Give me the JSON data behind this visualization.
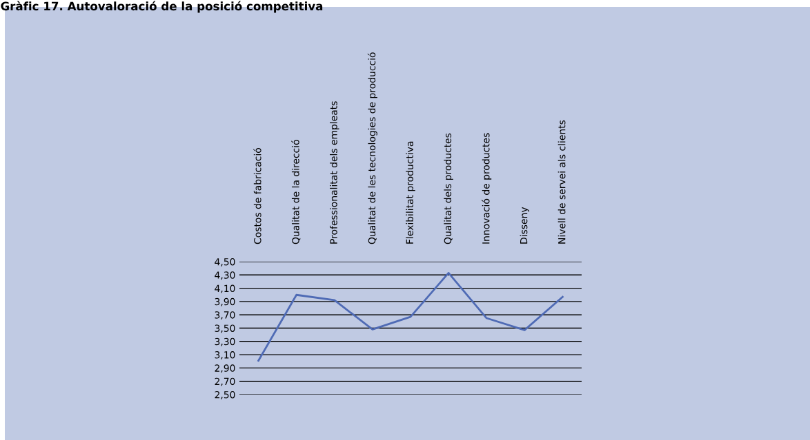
{
  "chart_data": {
    "type": "line",
    "title": "Gràfic 17. Autovaloració de la posició competitiva",
    "categories": [
      "Costos de fabricació",
      "Qualitat de la direcció",
      "Professionalitat dels empleats",
      "Qualitat de les tecnologies de producció",
      "Flexibilitat productiva",
      "Qualitat dels productes",
      "Innovació de productes",
      "Disseny",
      "Nivell de servei als clients"
    ],
    "series": [
      {
        "color": "#4f6bb5",
        "values": [
          3.01,
          4.0,
          3.92,
          3.48,
          3.67,
          4.33,
          3.65,
          3.47,
          3.97
        ]
      }
    ],
    "ylim": [
      2.5,
      4.5
    ],
    "yticks": [
      {
        "value": 2.5,
        "label": "2,50"
      },
      {
        "value": 2.7,
        "label": "2,70"
      },
      {
        "value": 2.9,
        "label": "2,90"
      },
      {
        "value": 3.1,
        "label": "3,10"
      },
      {
        "value": 3.3,
        "label": "3,30"
      },
      {
        "value": 3.5,
        "label": "3,50"
      },
      {
        "value": 3.7,
        "label": "3,70"
      },
      {
        "value": 3.9,
        "label": "3,90"
      },
      {
        "value": 4.1,
        "label": "4,10"
      },
      {
        "value": 4.3,
        "label": "4,30"
      },
      {
        "value": 4.5,
        "label": "4,50"
      }
    ],
    "grid": "y",
    "marker": "none",
    "line_style": "solid",
    "legend": false
  }
}
